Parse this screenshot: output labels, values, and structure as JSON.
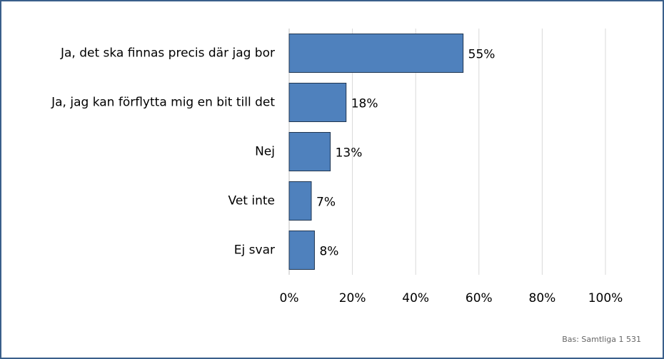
{
  "chart_data": {
    "type": "bar",
    "orientation": "horizontal",
    "categories": [
      "Ja, det ska finnas precis där jag bor",
      "Ja, jag kan förflytta mig en bit till det",
      "Nej",
      "Vet inte",
      "Ej svar"
    ],
    "values": [
      55,
      18,
      13,
      7,
      8
    ],
    "value_labels": [
      "55%",
      "18%",
      "13%",
      "7%",
      "8%"
    ],
    "color": "#4f81bd",
    "xlim": [
      0,
      100
    ],
    "xticks": [
      {
        "value": 0,
        "label": "0%"
      },
      {
        "value": 20,
        "label": "20%"
      },
      {
        "value": 40,
        "label": "40%"
      },
      {
        "value": 60,
        "label": "60%"
      },
      {
        "value": 80,
        "label": "80%"
      },
      {
        "value": 100,
        "label": "100%"
      }
    ],
    "grid": true,
    "footnote": "Bas: Samtliga 1 531"
  }
}
